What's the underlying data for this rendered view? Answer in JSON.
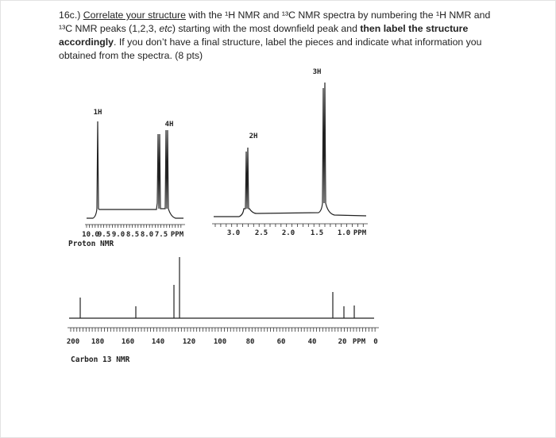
{
  "question": {
    "runs": [
      "16c.) ",
      "Correlate your structure",
      " with the ¹H NMR and ¹³C NMR spectra by numbering the ¹H NMR and ¹³C NMR peaks (1,2,3, ",
      "etc",
      ") starting with the most downfield peak and ",
      "then label the structure accordingly",
      ". If you don’t have a final structure, label the pieces and indicate what information you obtained from the spectra. (8 pts)"
    ]
  },
  "proton_nmr": {
    "integrations": [
      "1H",
      "4H",
      "2H",
      "3H"
    ],
    "aromatic_axis": [
      "10.0",
      "9.5",
      "9.0",
      "8.5",
      "8.0",
      "7.5",
      "PPM"
    ],
    "aliphatic_axis": [
      "3.0",
      "2.5",
      "2.0",
      "1.5",
      "1.0",
      "PPM"
    ],
    "caption": "Proton NMR"
  },
  "carbon_nmr": {
    "axis": [
      "200",
      "180",
      "160",
      "140",
      "120",
      "100",
      "80",
      "60",
      "40",
      "20",
      "PPM",
      "0"
    ],
    "caption": "Carbon 13 NMR"
  }
}
